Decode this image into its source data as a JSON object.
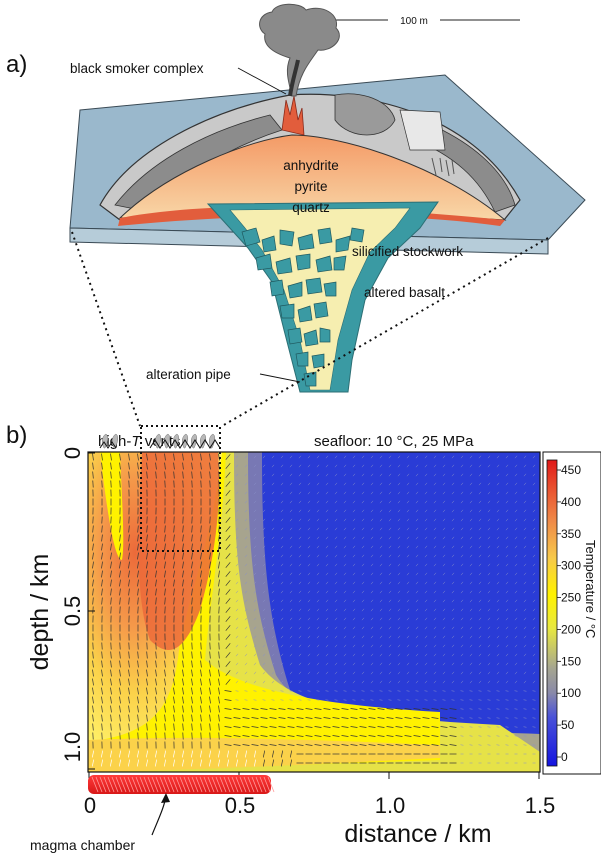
{
  "panel_a": {
    "label": "a)",
    "scale_bar": "100 m",
    "labels": {
      "black_smoker": "black smoker complex",
      "anhydrite": "anhydrite",
      "pyrite": "pyrite",
      "quartz": "quartz",
      "stockwork": "silicified stockwork",
      "altered_basalt": "altered basalt",
      "alteration_pipe": "alteration pipe"
    }
  },
  "panel_b": {
    "label": "b)",
    "vents_prefix": "high-",
    "vents_T": "T",
    "vents_suffix": " vents",
    "seafloor": "seafloor: 10 °C, 25 MPa",
    "ylabel": "depth / km",
    "xlabel": "distance / km",
    "x_ticks": [
      "0",
      "0.5",
      "1.0",
      "1.5"
    ],
    "y_ticks": [
      "0",
      "0.5",
      "1.0"
    ],
    "magma": "magma chamber",
    "colorbar": {
      "label": "Temperature / °C",
      "ticks": [
        "450",
        "400",
        "350",
        "300",
        "250",
        "200",
        "150",
        "100",
        "50",
        "0"
      ]
    }
  },
  "colors": {
    "sea": "#9ab8cc",
    "altered_basalt": "#3a9aa3",
    "stockwork_bg": "#f6eeb0",
    "mound_orange": "#f4b07a",
    "field_blue": "#2a3cd6",
    "magma_red": "#e8202a"
  }
}
